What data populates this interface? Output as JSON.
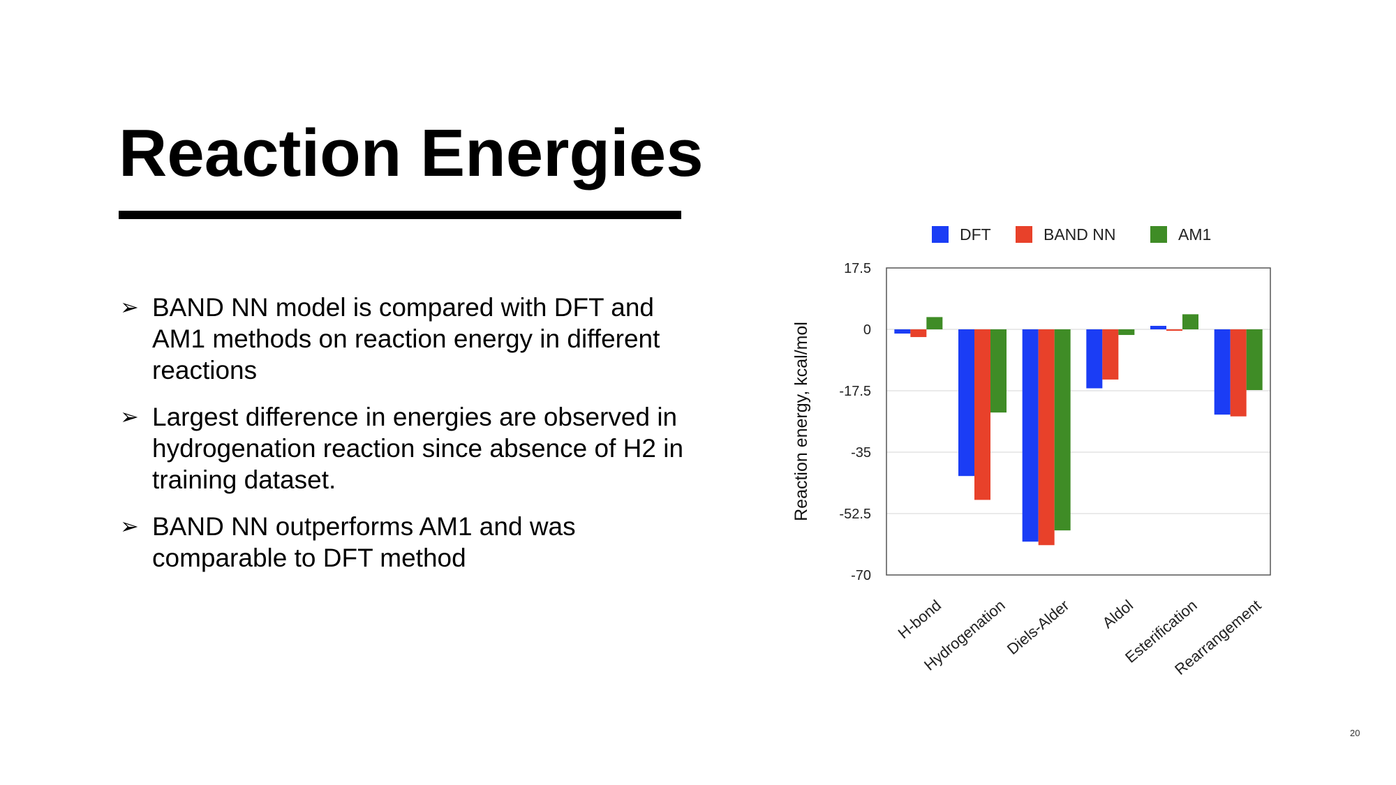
{
  "slide": {
    "title": "Reaction Energies",
    "page_number": "20",
    "bullets": [
      "BAND NN model is compared with DFT and AM1 methods on reaction energy in different reactions",
      "Largest difference in energies are observed in hydrogenation reaction since absence of H2 in training dataset.",
      "BAND NN outperforms AM1 and was comparable to DFT method"
    ],
    "bullet_glyph": "➢"
  },
  "chart_data": {
    "type": "bar",
    "title": "",
    "xlabel": "",
    "ylabel": "Reaction energy, kcal/mol",
    "categories": [
      "H-bond",
      "Hydrogenation",
      "Diels-Alder",
      "Aldol",
      "Esterification",
      "Rearrangement"
    ],
    "series": [
      {
        "name": "DFT",
        "color": "#1b3df5",
        "values": [
          -1.2,
          -41.8,
          -60.5,
          -16.8,
          1.0,
          -24.3
        ]
      },
      {
        "name": "BAND NN",
        "color": "#e8412a",
        "values": [
          -2.2,
          -48.6,
          -61.5,
          -14.3,
          -0.4,
          -24.8
        ]
      },
      {
        "name": "AM1",
        "color": "#3f8c26",
        "values": [
          3.5,
          -23.7,
          -57.3,
          -1.6,
          4.3,
          -17.3
        ]
      }
    ],
    "ylim": [
      -70,
      17.5
    ],
    "yticks": [
      17.5,
      0,
      -17.5,
      -35,
      -52.5,
      -70
    ],
    "ytick_labels": [
      "17.5",
      "0",
      "-17.5",
      "-35",
      "-52.5",
      "-70"
    ],
    "grid": true,
    "legend_position": "top"
  }
}
